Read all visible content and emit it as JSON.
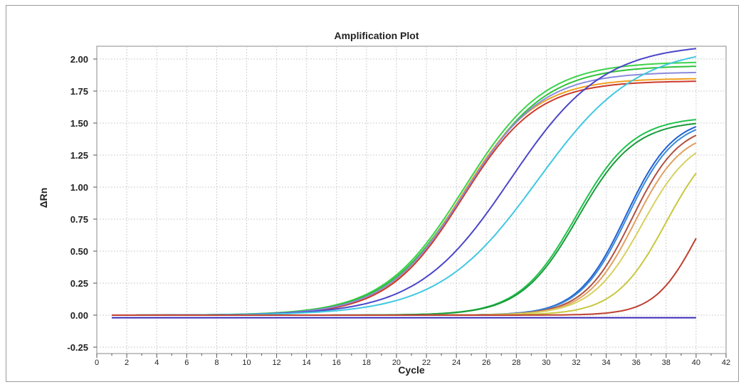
{
  "chart_data": {
    "type": "line",
    "title": "Amplification Plot",
    "xlabel": "Cycle",
    "ylabel": "ΔRn",
    "xlim": [
      0,
      42
    ],
    "ylim": [
      -0.3,
      2.1
    ],
    "grid": true,
    "legend": "none",
    "x_ticks": [
      "0",
      "2",
      "4",
      "6",
      "8",
      "10",
      "12",
      "14",
      "16",
      "18",
      "20",
      "22",
      "24",
      "26",
      "28",
      "30",
      "32",
      "34",
      "36",
      "38",
      "40",
      "42"
    ],
    "y_ticks": [
      "2.00",
      "1.75",
      "1.50",
      "1.25",
      "1.00",
      "0.75",
      "0.50",
      "0.25",
      "0.00",
      "-0.25"
    ],
    "x_range": [
      1,
      40
    ],
    "series": [
      {
        "color": "#3cd24a",
        "plateau": 1.98,
        "midpoint": 24.5,
        "slope": 2.7,
        "baseline": 0.0
      },
      {
        "color": "#2fc23a",
        "plateau": 1.95,
        "midpoint": 24.6,
        "slope": 2.7,
        "baseline": 0.0
      },
      {
        "color": "#f0a020",
        "plateau": 1.85,
        "midpoint": 24.3,
        "slope": 2.5,
        "baseline": 0.0
      },
      {
        "color": "#cc3a2a",
        "plateau": 1.83,
        "midpoint": 24.4,
        "slope": 2.5,
        "baseline": 0.0
      },
      {
        "color": "#8a8add",
        "plateau": 1.9,
        "midpoint": 24.5,
        "slope": 2.6,
        "baseline": 0.0
      },
      {
        "color": "#4a45c8",
        "plateau": 2.12,
        "midpoint": 27.6,
        "slope": 3.1,
        "baseline": 0.0
      },
      {
        "color": "#40c8e0",
        "plateau": 2.1,
        "midpoint": 29.4,
        "slope": 3.3,
        "baseline": 0.0
      },
      {
        "color": "#1fc24c",
        "plateau": 1.55,
        "midpoint": 32.0,
        "slope": 1.9,
        "baseline": 0.0
      },
      {
        "color": "#1a9a3a",
        "plateau": 1.52,
        "midpoint": 32.1,
        "slope": 1.9,
        "baseline": 0.0
      },
      {
        "color": "#2060d0",
        "plateau": 1.55,
        "midpoint": 35.3,
        "slope": 1.6,
        "baseline": 0.0
      },
      {
        "color": "#3a8ad8",
        "plateau": 1.53,
        "midpoint": 35.4,
        "slope": 1.6,
        "baseline": 0.0
      },
      {
        "color": "#b05040",
        "plateau": 1.5,
        "midpoint": 35.7,
        "slope": 1.6,
        "baseline": 0.0
      },
      {
        "color": "#e0a060",
        "plateau": 1.45,
        "midpoint": 35.9,
        "slope": 1.6,
        "baseline": 0.0
      },
      {
        "color": "#d8d060",
        "plateau": 1.42,
        "midpoint": 36.4,
        "slope": 1.7,
        "baseline": 0.0
      },
      {
        "color": "#c8c840",
        "plateau": 1.45,
        "midpoint": 38.0,
        "slope": 1.7,
        "baseline": 0.0
      },
      {
        "color": "#c04030",
        "plateau": 1.2,
        "midpoint": 40.0,
        "slope": 1.4,
        "baseline": 0.0
      },
      {
        "color": "#3a2ab8",
        "plateau": 0.0,
        "midpoint": 50.0,
        "slope": 1.0,
        "baseline": -0.02
      }
    ]
  }
}
